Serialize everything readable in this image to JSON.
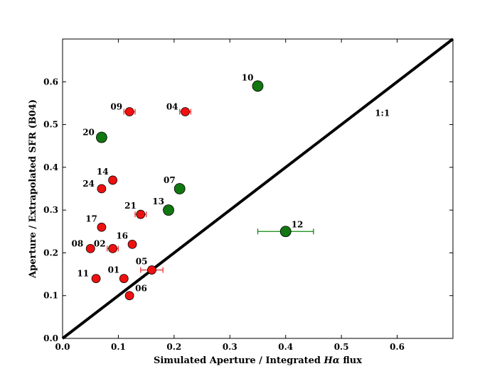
{
  "chart_data": {
    "type": "scatter",
    "title": "",
    "xlabel_parts": [
      "Simulated Aperture / Integrated ",
      "Hα",
      " flux"
    ],
    "ylabel": "Aperture / Extrapolated SFR (B04)",
    "xlim": [
      0.0,
      0.7
    ],
    "ylim": [
      0.0,
      0.7
    ],
    "xticks": [
      0.0,
      0.1,
      0.2,
      0.3,
      0.4,
      0.5,
      0.6
    ],
    "yticks": [
      0.0,
      0.1,
      0.2,
      0.3,
      0.4,
      0.5,
      0.6
    ],
    "xtick_labels": [
      "0.0",
      "0.1",
      "0.2",
      "0.3",
      "0.4",
      "0.5",
      "0.6"
    ],
    "ytick_labels": [
      "0.0",
      "0.1",
      "0.2",
      "0.3",
      "0.4",
      "0.5",
      "0.6"
    ],
    "grid": false,
    "reference_line": {
      "label": "1:1",
      "x": [
        0.0,
        0.7
      ],
      "y": [
        0.0,
        0.7
      ],
      "label_at": [
        0.56,
        0.52
      ]
    },
    "colors": {
      "red": "#ee1111",
      "green": "#117711",
      "errorbar_red": "#ee3333",
      "errorbar_green": "#118811"
    },
    "series": [
      {
        "name": "red",
        "color": "red",
        "points": [
          {
            "id": "09",
            "x": 0.12,
            "y": 0.53,
            "xerr": 0.01,
            "label_pos": "left"
          },
          {
            "id": "04",
            "x": 0.22,
            "y": 0.53,
            "xerr": 0.01,
            "label_pos": "left"
          },
          {
            "id": "14",
            "x": 0.09,
            "y": 0.37,
            "xerr": 0,
            "label_pos": "upleft"
          },
          {
            "id": "24",
            "x": 0.07,
            "y": 0.35,
            "xerr": 0,
            "label_pos": "left"
          },
          {
            "id": "21",
            "x": 0.14,
            "y": 0.29,
            "xerr": 0.01,
            "label_pos": "upleft"
          },
          {
            "id": "17",
            "x": 0.07,
            "y": 0.26,
            "xerr": 0,
            "label_pos": "upleft"
          },
          {
            "id": "16",
            "x": 0.125,
            "y": 0.22,
            "xerr": 0,
            "label_pos": "upleft"
          },
          {
            "id": "08",
            "x": 0.05,
            "y": 0.21,
            "xerr": 0,
            "label_pos": "left"
          },
          {
            "id": "02",
            "x": 0.09,
            "y": 0.21,
            "xerr": 0.01,
            "label_pos": "left"
          },
          {
            "id": "05",
            "x": 0.16,
            "y": 0.16,
            "xerr": 0.02,
            "label_pos": "upleft"
          },
          {
            "id": "11",
            "x": 0.06,
            "y": 0.14,
            "xerr": 0,
            "label_pos": "left"
          },
          {
            "id": "01",
            "x": 0.11,
            "y": 0.14,
            "xerr": 0,
            "label_pos": "upleft"
          },
          {
            "id": "06",
            "x": 0.12,
            "y": 0.1,
            "xerr": 0,
            "label_pos": "upright"
          }
        ]
      },
      {
        "name": "green",
        "color": "green",
        "points": [
          {
            "id": "10",
            "x": 0.35,
            "y": 0.59,
            "xerr": 0,
            "label_pos": "upleft"
          },
          {
            "id": "20",
            "x": 0.07,
            "y": 0.47,
            "xerr": 0,
            "label_pos": "left"
          },
          {
            "id": "07",
            "x": 0.21,
            "y": 0.35,
            "xerr": 0,
            "label_pos": "upleft"
          },
          {
            "id": "13",
            "x": 0.19,
            "y": 0.3,
            "xerr": 0,
            "label_pos": "upleft"
          },
          {
            "id": "12",
            "x": 0.4,
            "y": 0.25,
            "xerr": 0.05,
            "label_pos": "upright"
          }
        ]
      }
    ]
  }
}
